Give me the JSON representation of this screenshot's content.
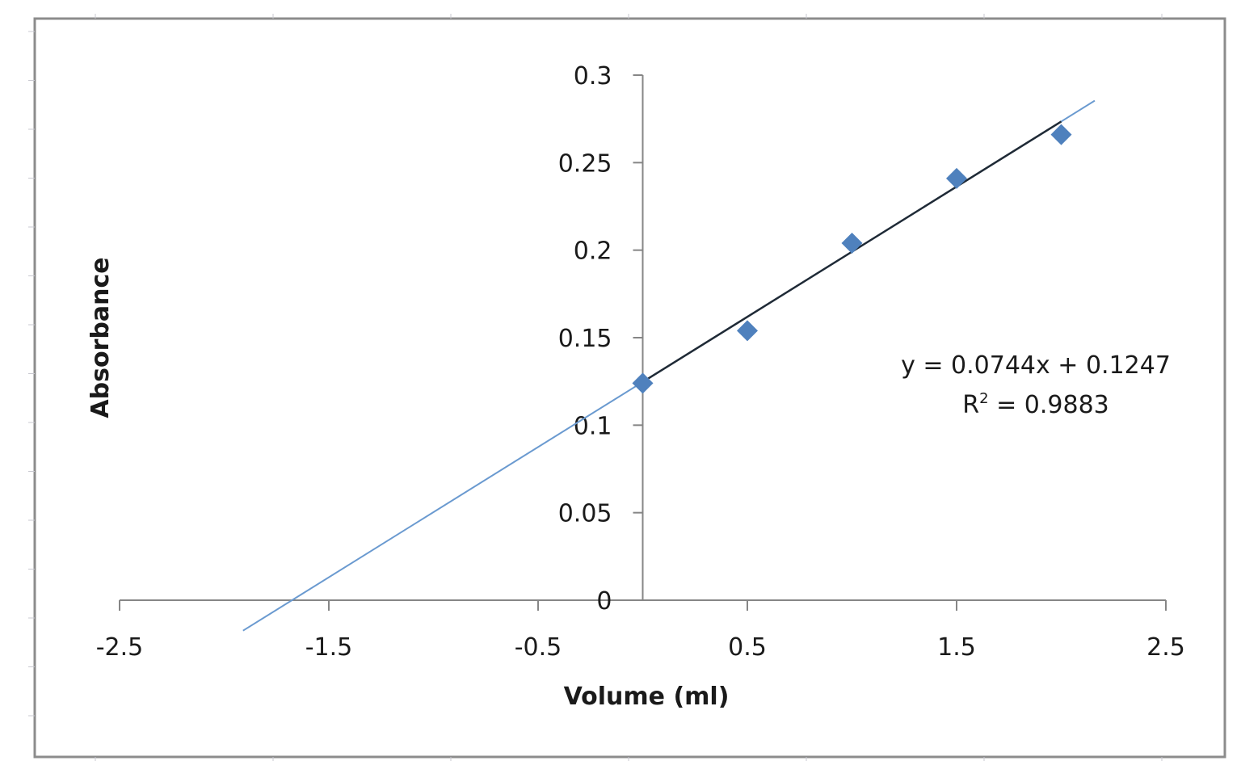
{
  "chart_data": {
    "type": "scatter",
    "title": "",
    "xlabel": "Volume (ml)",
    "ylabel": "Absorbance",
    "xlim": [
      -2.5,
      2.5
    ],
    "ylim": [
      0,
      0.3
    ],
    "x_ticks": [
      -2.5,
      -1.5,
      -0.5,
      0.5,
      1.5,
      2.5
    ],
    "x_tick_labels": [
      "-2.5",
      "-1.5",
      "-0.5",
      "0.5",
      "1.5",
      "2.5"
    ],
    "y_ticks": [
      0,
      0.05,
      0.1,
      0.15,
      0.2,
      0.25,
      0.3
    ],
    "y_tick_labels": [
      "0",
      "0.05",
      "0.1",
      "0.15",
      "0.2",
      "0.25",
      "0.3"
    ],
    "grid": false,
    "legend": null,
    "series": [
      {
        "name": "Absorbance",
        "marker": "diamond",
        "color": "#4F81BD",
        "x": [
          0,
          0.5,
          1,
          1.5,
          2
        ],
        "y": [
          0.124,
          0.154,
          0.204,
          0.241,
          0.266
        ]
      }
    ],
    "trendlines": [
      {
        "name": "linear-fit-extrapolated",
        "color": "#4F81BD",
        "slope": 0.0744,
        "intercept": 0.1247,
        "x_range": [
          -1.91,
          2.16
        ]
      },
      {
        "name": "linear-fit",
        "color": "#1f2a36",
        "slope": 0.0744,
        "intercept": 0.1247,
        "x_range": [
          0,
          2
        ]
      }
    ],
    "annotations": {
      "equation": "y = 0.0744x + 0.1247",
      "r_squared_prefix": "R",
      "r_squared_sup": "2",
      "r_squared_value": " = 0.9883"
    }
  },
  "colors": {
    "axis": "#868686",
    "frame": "#8c8c8c",
    "marker": "#4F81BD",
    "trend_light": "#6a9ad0",
    "trend_dark": "#1f2a36"
  }
}
